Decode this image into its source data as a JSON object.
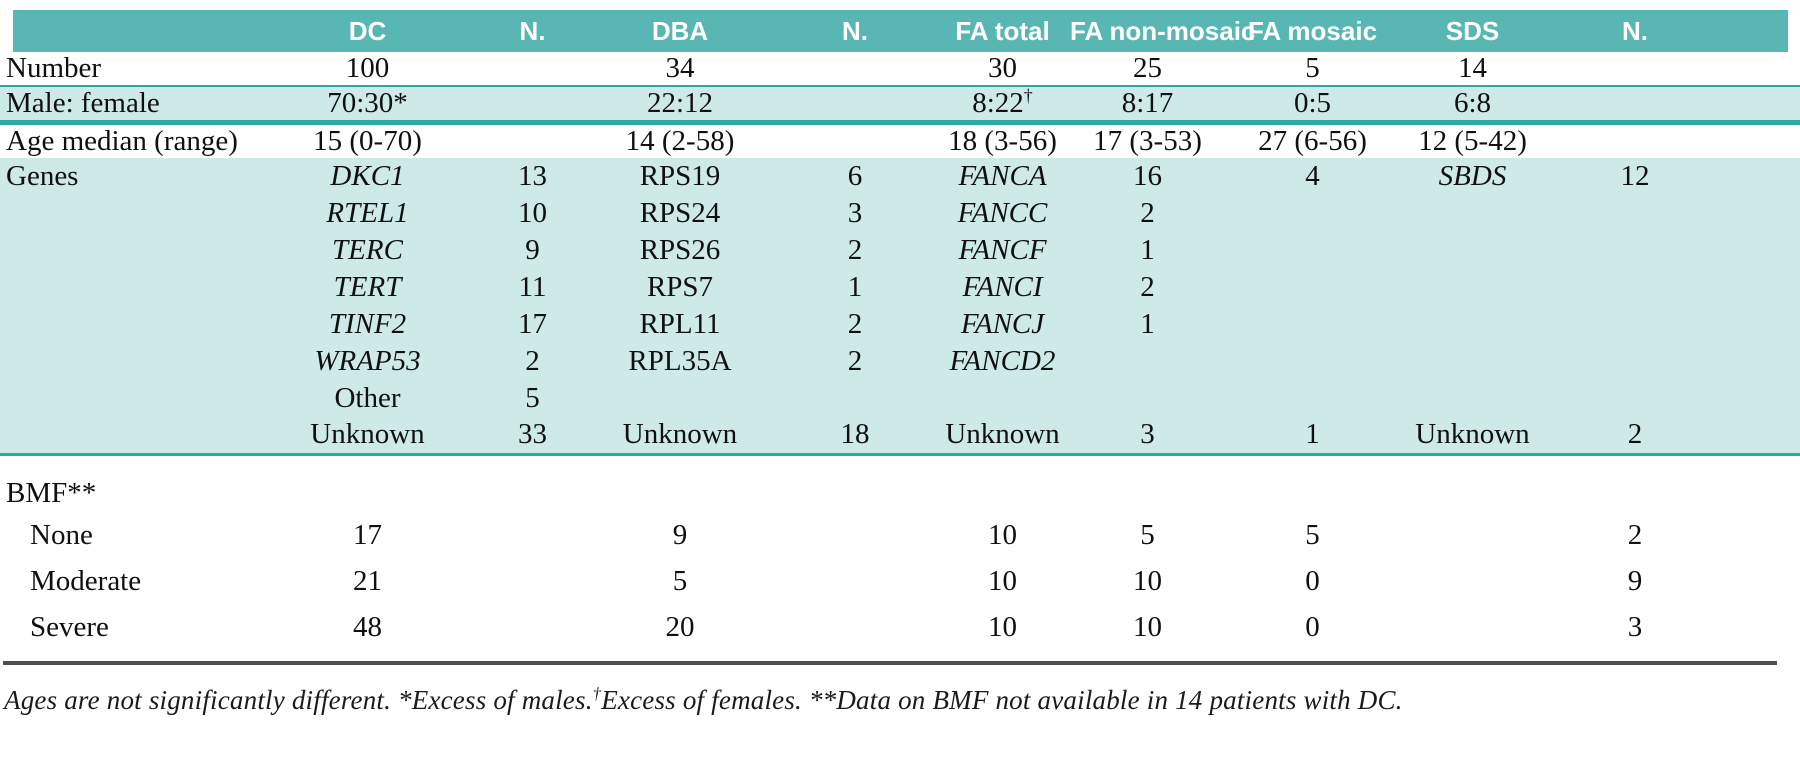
{
  "colors": {
    "header_teal": "#58b7b3",
    "rule_teal": "#2fa7a3",
    "band_light": "#cdeae9",
    "bottom_rule_gray": "#4f4f4f"
  },
  "table": {
    "headers": [
      "",
      "DC",
      "N.",
      "DBA",
      "N.",
      "FA total",
      "FA non-mosaic",
      "FA mosaic",
      "SDS",
      "N."
    ],
    "rows": [
      {
        "key": "number",
        "style": "plain r-number",
        "label": "Number",
        "indent": false,
        "cells": [
          "100",
          "",
          "34",
          "",
          "30",
          "25",
          "5",
          "14",
          ""
        ]
      },
      {
        "key": "male-female",
        "style": "ruled-band",
        "label": "Male: female",
        "indent": false,
        "cells": [
          "70:30*",
          "",
          "22:12",
          "",
          {
            "t": "8:22",
            "sup": "†"
          },
          "8:17",
          "0:5",
          "6:8",
          ""
        ]
      },
      {
        "key": "age-median",
        "style": "plain r-age",
        "label": "Age median (range)",
        "indent": false,
        "cells": [
          "15 (0-70)",
          "",
          "14 (2-58)",
          "",
          "18 (3-56)",
          "17 (3-53)",
          "27 (6-56)",
          "12 (5-42)",
          ""
        ]
      },
      {
        "key": "genes-1",
        "style": "genes",
        "label": "Genes",
        "indent": false,
        "cells": [
          {
            "t": "DKC1",
            "i": true
          },
          "13",
          "RPS19",
          "6",
          {
            "t": "FANCA",
            "i": true
          },
          "16",
          "4",
          {
            "t": "SBDS",
            "i": true
          },
          "12"
        ]
      },
      {
        "key": "genes-2",
        "style": "genes",
        "label": "",
        "indent": false,
        "cells": [
          {
            "t": "RTEL1",
            "i": true
          },
          "10",
          "RPS24",
          "3",
          {
            "t": "FANCC",
            "i": true
          },
          "2",
          "",
          "",
          ""
        ]
      },
      {
        "key": "genes-3",
        "style": "genes",
        "label": "",
        "indent": false,
        "cells": [
          {
            "t": "TERC",
            "i": true
          },
          "9",
          "RPS26",
          "2",
          {
            "t": "FANCF",
            "i": true
          },
          "1",
          "",
          "",
          ""
        ]
      },
      {
        "key": "genes-4",
        "style": "genes",
        "label": "",
        "indent": false,
        "cells": [
          {
            "t": "TERT",
            "i": true
          },
          "11",
          "RPS7",
          "1",
          {
            "t": "FANCI",
            "i": true
          },
          "2",
          "",
          "",
          ""
        ]
      },
      {
        "key": "genes-5",
        "style": "genes",
        "label": "",
        "indent": false,
        "cells": [
          {
            "t": "TINF2",
            "i": true
          },
          "17",
          "RPL11",
          "2",
          {
            "t": "FANCJ",
            "i": true
          },
          "1",
          "",
          "",
          ""
        ]
      },
      {
        "key": "genes-6",
        "style": "genes",
        "label": "",
        "indent": false,
        "cells": [
          {
            "t": "WRAP53",
            "i": true
          },
          "2",
          "RPL35A",
          "2",
          {
            "t": "FANCD2",
            "i": true
          },
          "",
          "",
          "",
          ""
        ]
      },
      {
        "key": "genes-7",
        "style": "genes",
        "label": "",
        "indent": false,
        "cells": [
          "Other",
          "5",
          "",
          "",
          "",
          "",
          "",
          "",
          ""
        ]
      },
      {
        "key": "genes-8",
        "style": "genes genes-last",
        "label": "",
        "indent": false,
        "cells": [
          "Unknown",
          "33",
          "Unknown",
          "18",
          "Unknown",
          "3",
          "1",
          "Unknown",
          "2"
        ]
      },
      {
        "key": "bmf",
        "style": "section",
        "label": "BMF**",
        "indent": false,
        "cells": [
          "",
          "",
          "",
          "",
          "",
          "",
          "",
          "",
          ""
        ]
      },
      {
        "key": "bmf-none",
        "style": "bmf-row",
        "label": "None",
        "indent": true,
        "cells": [
          "17",
          "",
          "9",
          "",
          "10",
          "5",
          "5",
          "",
          "2"
        ]
      },
      {
        "key": "bmf-moderate",
        "style": "bmf-row",
        "label": "Moderate",
        "indent": true,
        "cells": [
          "21",
          "",
          "5",
          "",
          "10",
          "10",
          "0",
          "",
          "9"
        ]
      },
      {
        "key": "bmf-severe",
        "style": "bmf-row",
        "label": "Severe",
        "indent": true,
        "cells": [
          "48",
          "",
          "20",
          "",
          "10",
          "10",
          "0",
          "",
          "3"
        ]
      }
    ]
  },
  "footnote": {
    "parts": [
      {
        "t": "Ages are not significantly different. *Excess of males."
      },
      {
        "t": "†",
        "sup": true
      },
      {
        "t": "Excess of females. **Data on BMF not available in 14 patients with DC."
      }
    ]
  }
}
